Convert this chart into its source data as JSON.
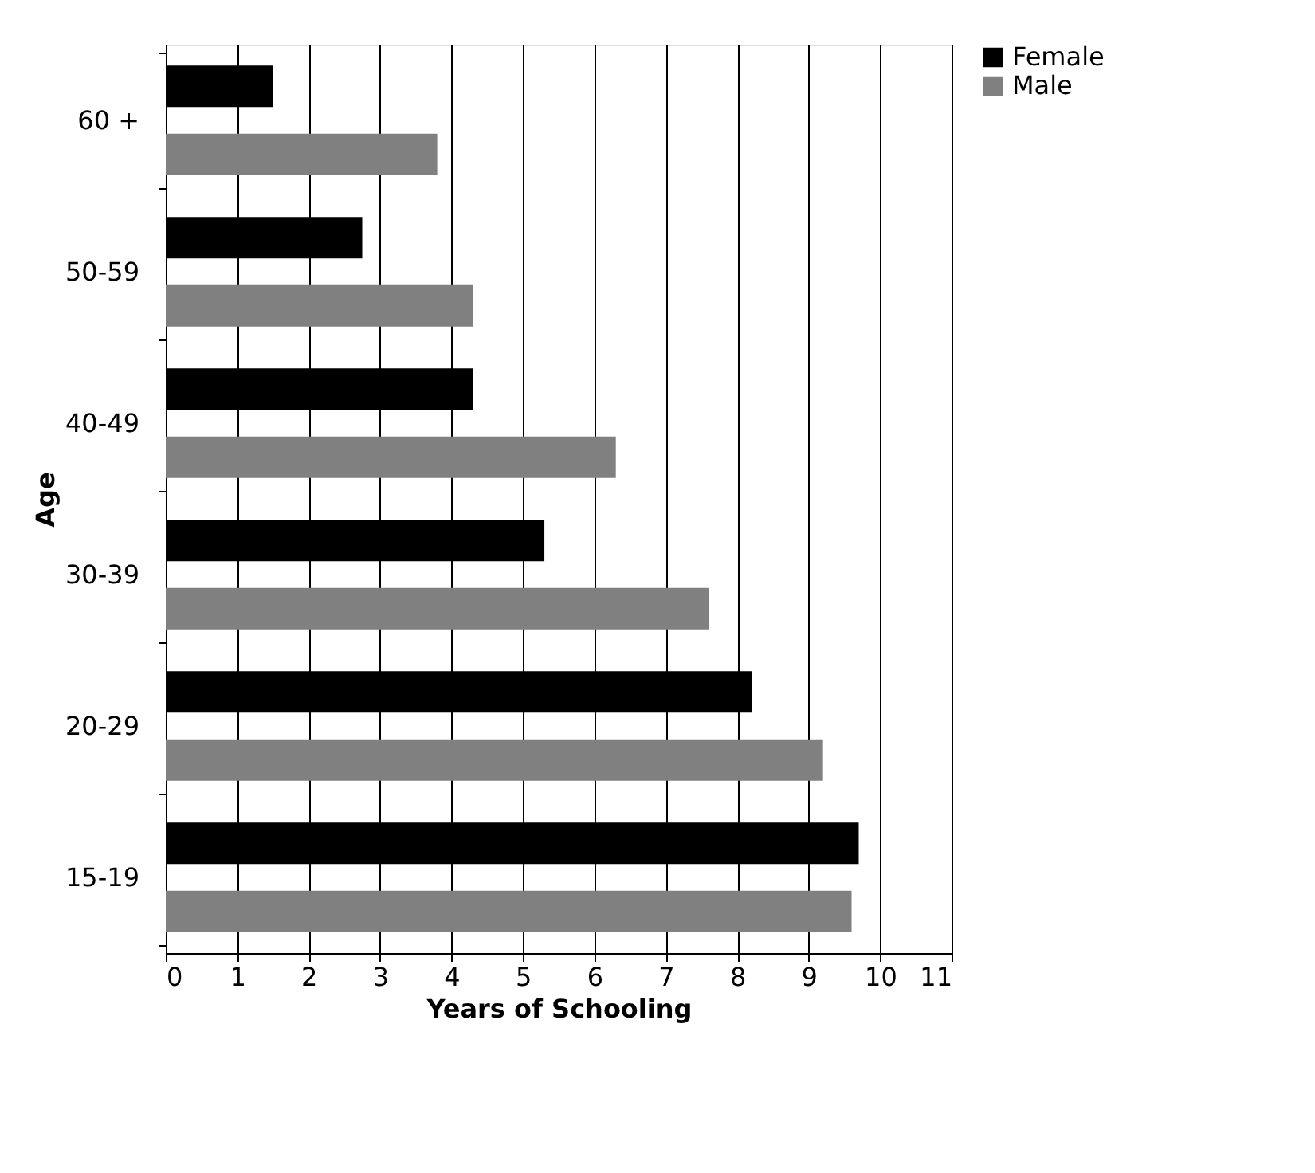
{
  "chart_data": {
    "type": "bar",
    "orientation": "horizontal",
    "xlabel": "Years of Schooling",
    "ylabel": "Age",
    "categories": [
      "60 +",
      "50-59",
      "40-49",
      "30-39",
      "20-29",
      "15-19"
    ],
    "series": [
      {
        "name": "Female",
        "color": "#000000",
        "values": [
          1.5,
          2.75,
          4.3,
          5.3,
          8.2,
          9.7
        ]
      },
      {
        "name": "Male",
        "color": "#808080",
        "values": [
          3.8,
          4.3,
          6.3,
          7.6,
          9.2,
          9.6
        ]
      }
    ],
    "xlim": [
      0,
      11
    ],
    "xticks": [
      0,
      1,
      2,
      3,
      4,
      5,
      6,
      7,
      8,
      9,
      10,
      11
    ],
    "grid": "x",
    "legend": "right"
  }
}
